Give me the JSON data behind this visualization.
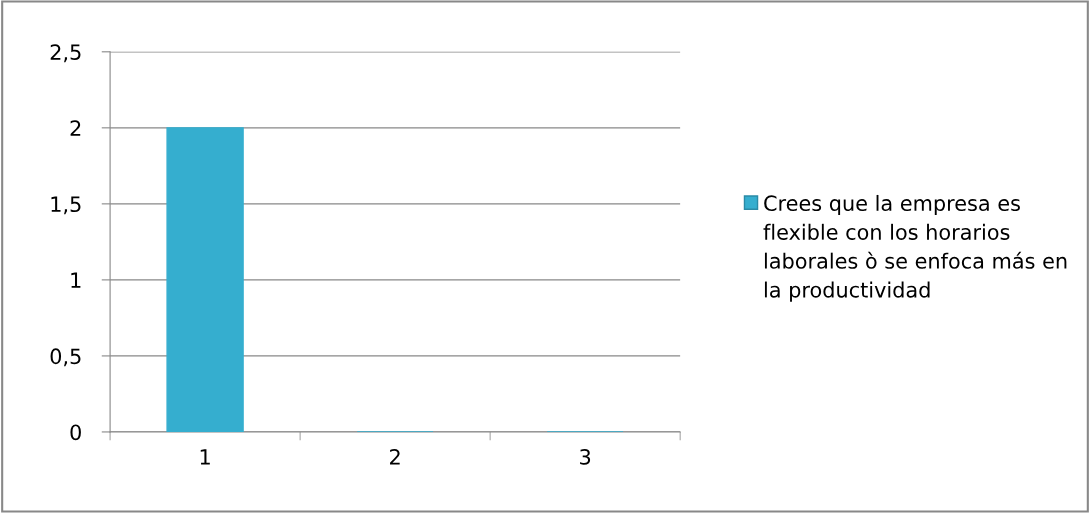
{
  "chart_data": {
    "type": "bar",
    "categories": [
      "1",
      "2",
      "3"
    ],
    "series": [
      {
        "name": "Crees que la empresa es flexible con los horarios laborales ò se enfoca más en la productividad",
        "color": "#35aecf",
        "values": [
          2,
          0,
          0
        ]
      }
    ],
    "ylim": [
      0,
      2.5
    ],
    "yticks": [
      0,
      {
        "value": 0.5,
        "label": "0,5"
      },
      1,
      {
        "value": 1.5,
        "label": "1,5"
      },
      2,
      {
        "value": 2.5,
        "label": "2,5"
      }
    ],
    "grid": "y",
    "legend": "right"
  }
}
